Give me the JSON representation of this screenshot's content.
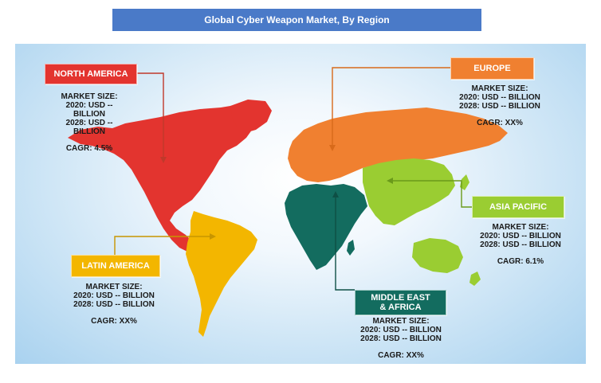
{
  "title": "Global Cyber Weapon Market, By Region",
  "colors": {
    "north_america": "#e3342f",
    "europe": "#f08030",
    "asia_pacific": "#9acd32",
    "latin_america": "#f3b600",
    "middle_east_africa": "#136c5f",
    "title_bar": "#4a7ac8"
  },
  "regions": {
    "north_america": {
      "name": "NORTH AMERICA",
      "market_size_label": "MARKET SIZE:",
      "line_2020": "2020: USD -- BILLION",
      "line_2028": "2028: USD -- BILLION",
      "cagr": "CAGR: 4.5%"
    },
    "europe": {
      "name": "EUROPE",
      "market_size_label": "MARKET SIZE:",
      "line_2020": "2020: USD -- BILLION",
      "line_2028": "2028: USD -- BILLION",
      "cagr": "CAGR: XX%"
    },
    "asia_pacific": {
      "name": "ASIA PACIFIC",
      "market_size_label": "MARKET SIZE:",
      "line_2020": "2020: USD -- BILLION",
      "line_2028": "2028: USD -- BILLION",
      "cagr": "CAGR: 6.1%"
    },
    "latin_america": {
      "name": "LATIN AMERICA",
      "market_size_label": "MARKET SIZE:",
      "line_2020": "2020: USD -- BILLION",
      "line_2028": "2028: USD -- BILLION",
      "cagr": "CAGR: XX%"
    },
    "middle_east_africa": {
      "name_line1": "MIDDLE EAST",
      "name_line2": "& AFRICA",
      "market_size_label": "MARKET SIZE:",
      "line_2020": "2020: USD -- BILLION",
      "line_2028": "2028: USD -- BILLION",
      "cagr": "CAGR: XX%"
    }
  }
}
